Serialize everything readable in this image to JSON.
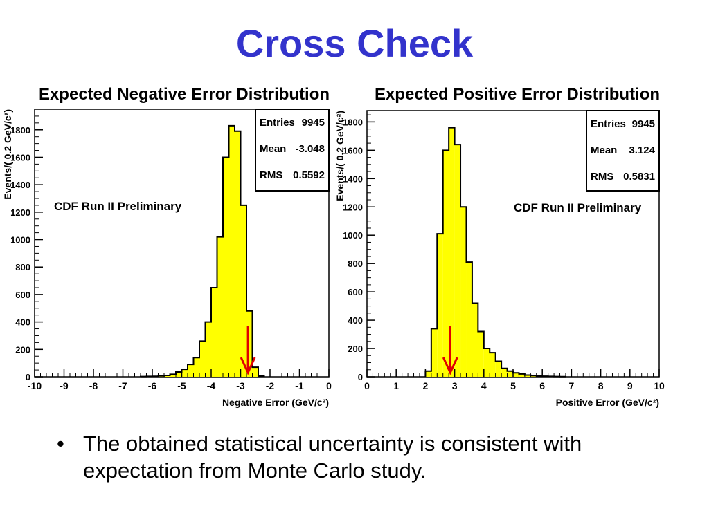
{
  "slide": {
    "title": "Cross Check",
    "bullet_marker": "•",
    "bullet_text": "The obtained statistical uncertainty is consistent with expectation from Monte Carlo study."
  },
  "colors": {
    "title": "#3333cc",
    "fill": "#ffff00",
    "arrow": "#e00000"
  },
  "chart_data": [
    {
      "type": "bar",
      "title": "Expected Negative Error Distribution",
      "ylabel": "Events/( 0.2 GeV/c²)",
      "xlabel": "Negative Error (GeV/c²)",
      "xlim": [
        -10,
        0
      ],
      "ylim": [
        0,
        1950
      ],
      "xticks": [
        -10,
        -9,
        -8,
        -7,
        -6,
        -5,
        -4,
        -3,
        -2,
        -1,
        0
      ],
      "yticks": [
        0,
        200,
        400,
        600,
        800,
        1000,
        1200,
        1400,
        1600,
        1800
      ],
      "bin_width": 0.2,
      "bin_start": -6.4,
      "values": [
        2,
        3,
        4,
        6,
        10,
        18,
        35,
        55,
        90,
        140,
        260,
        400,
        650,
        1020,
        1600,
        1830,
        1790,
        1250,
        480,
        70,
        5
      ],
      "annotation": "CDF Run II Preliminary",
      "arrow_x": -2.75,
      "stats": [
        {
          "label": "Entries",
          "value": "9945"
        },
        {
          "label": "Mean",
          "value": "-3.048"
        },
        {
          "label": "RMS",
          "value": "0.5592"
        }
      ]
    },
    {
      "type": "bar",
      "title": "Expected Positive Error Distribution",
      "ylabel": "Events/( 0.2 GeV/c²)",
      "xlabel": "Positive Error (GeV/c²)",
      "xlim": [
        0,
        10
      ],
      "ylim": [
        0,
        1880
      ],
      "xticks": [
        0,
        1,
        2,
        3,
        4,
        5,
        6,
        7,
        8,
        9,
        10
      ],
      "yticks": [
        0,
        200,
        400,
        600,
        800,
        1000,
        1200,
        1400,
        1600,
        1800
      ],
      "bin_width": 0.2,
      "bin_start": 2.0,
      "values": [
        40,
        340,
        1010,
        1600,
        1760,
        1640,
        1200,
        810,
        520,
        320,
        200,
        170,
        110,
        60,
        40,
        28,
        20,
        12,
        8,
        5,
        4,
        3,
        2,
        1
      ],
      "annotation": "CDF Run II Preliminary",
      "arrow_x": 2.85,
      "stats": [
        {
          "label": "Entries",
          "value": "9945"
        },
        {
          "label": "Mean",
          "value": "3.124"
        },
        {
          "label": "RMS",
          "value": "0.5831"
        }
      ]
    }
  ]
}
